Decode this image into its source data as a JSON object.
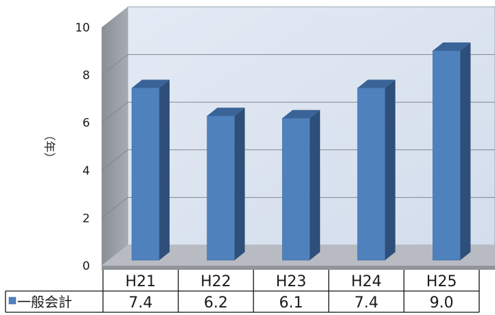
{
  "chart_data": {
    "type": "bar",
    "categories": [
      "H21",
      "H22",
      "H23",
      "H24",
      "H25"
    ],
    "series": [
      {
        "name": "一般会計",
        "values": [
          7.4,
          6.2,
          6.1,
          7.4,
          9.0
        ],
        "color": "#4f81bd"
      }
    ],
    "table_values": [
      "7.4",
      "6.2",
      "6.1",
      "7.4",
      "9.0"
    ],
    "ylabel": "（年）",
    "ylim": [
      0,
      10
    ],
    "yticks": [
      "0",
      "2",
      "4",
      "6",
      "8",
      "10"
    ],
    "grid": true,
    "legend": "data-table"
  }
}
